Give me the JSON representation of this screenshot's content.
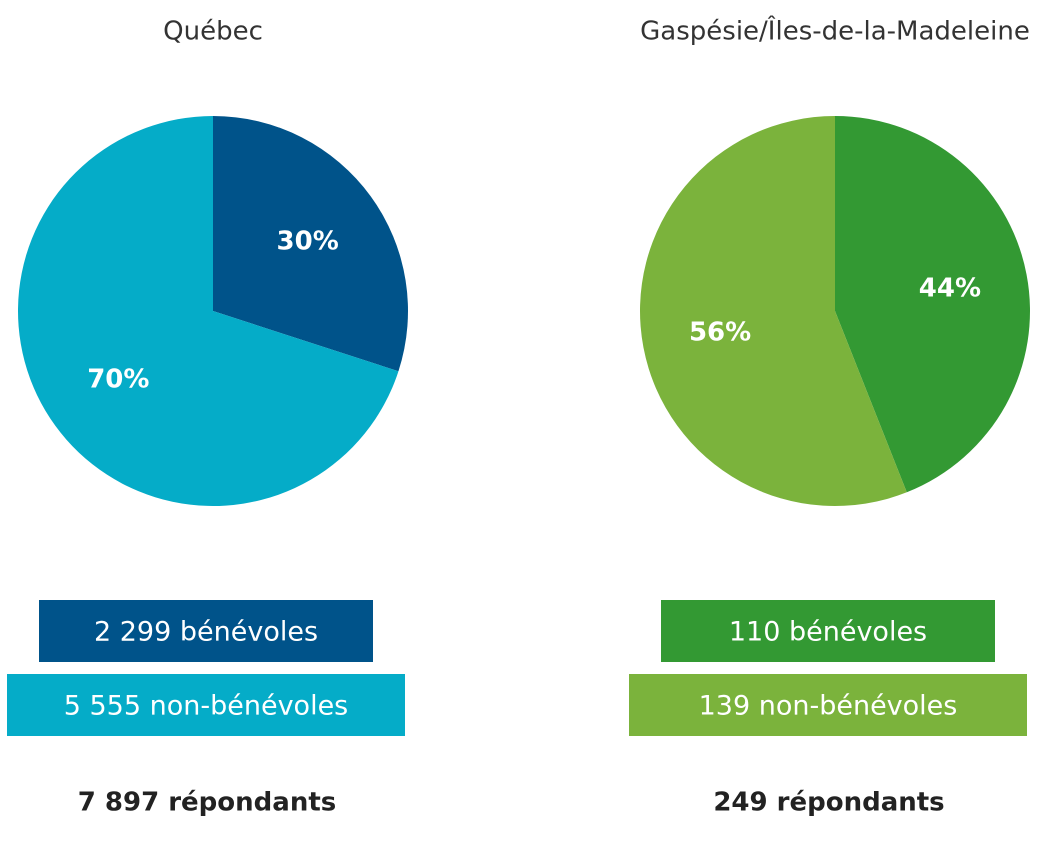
{
  "chart_data": [
    {
      "type": "pie",
      "title": "Québec",
      "categories": [
        "2 299 bénévoles",
        "5 555 non-bénévoles"
      ],
      "values": [
        30,
        70
      ],
      "value_labels": [
        "30%",
        "70%"
      ],
      "colors": [
        "#00538a",
        "#05acc8"
      ],
      "footer": "7 897 répondants"
    },
    {
      "type": "pie",
      "title": "Gaspésie/Îles-de-la-Madeleine",
      "categories": [
        "110 bénévoles",
        "139 non-bénévoles"
      ],
      "values": [
        44,
        56
      ],
      "value_labels": [
        "44%",
        "56%"
      ],
      "colors": [
        "#339933",
        "#7bb33c"
      ],
      "footer": "249 répondants"
    }
  ]
}
